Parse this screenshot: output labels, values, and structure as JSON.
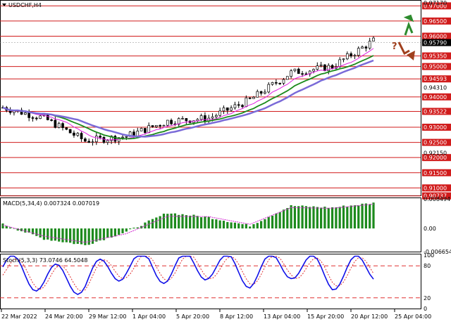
{
  "header": {
    "symbol_label": "USDCHF,H4",
    "dropdown_icon": "triangle-down-icon"
  },
  "colors": {
    "resistance_line": "#d11c1c",
    "candle": "#000000",
    "ma_fast": "#e020e0",
    "ma_mid": "#1a8a1a",
    "ma_slow": "#7a6ad8",
    "macd_hist": "#1c8a1c",
    "macd_signal": "#d02ad0",
    "stoch_main": "#1010e8",
    "stoch_signal": "#e03030",
    "up_arrow": "#2e8b2e",
    "down_arrow": "#a0401e",
    "question_mark": "#a0401e",
    "current_price_bg": "#000000"
  },
  "icons": {
    "up_arrow": "curved-up-arrow-icon",
    "down_arrow": "curved-down-arrow-icon",
    "question": "question-mark-icon"
  },
  "price_axis": {
    "top_label": "0.97170",
    "current_price": "0.95790",
    "resistance_levels": [
      "0.97000",
      "0.96500",
      "0.96000",
      "0.95350",
      "0.95000",
      "0.94593",
      "0.94000",
      "0.93522",
      "0.93000",
      "0.92500",
      "0.92000",
      "0.91500",
      "0.91000",
      "0.90737"
    ],
    "intermediate_labels": [
      "0.94310",
      "0.92150"
    ]
  },
  "macd": {
    "label": "MACD(5,34,4) 0.007324 0.007019",
    "axis_labels": [
      "0.008494",
      "0.00",
      "-0.006654"
    ]
  },
  "stochastic": {
    "label": "Stoch(5,3,3) 73.0746 64.5048",
    "axis_labels": [
      "100",
      "80",
      "20",
      "0"
    ]
  },
  "time_axis": {
    "labels": [
      "22 Mar 2022",
      "24 Mar 20:00",
      "29 Mar 12:00",
      "1 Apr 04:00",
      "5 Apr 20:00",
      "8 Apr 12:00",
      "13 Apr 04:00",
      "15 Apr 20:00",
      "20 Apr 12:00",
      "25 Apr 04:00"
    ]
  },
  "chart_data": [
    {
      "type": "line",
      "title": "USDCHF,H4",
      "description_series": "candlestick close (approx.)",
      "x": [
        "22 Mar 2022",
        "24 Mar 20:00",
        "29 Mar 12:00",
        "1 Apr 04:00",
        "5 Apr 20:00",
        "8 Apr 12:00",
        "13 Apr 04:00",
        "15 Apr 20:00",
        "20 Apr 12:00",
        "25 Apr 04:00"
      ],
      "ylim": [
        0.9073,
        0.9717
      ],
      "series": [
        {
          "values": [
            0.9365,
            0.933,
            0.9255,
            0.927,
            0.932,
            0.933,
            0.939,
            0.948,
            0.95,
            0.9585
          ]
        }
      ]
    },
    {
      "type": "bar",
      "title": "MACD(5,34,4) 0.007324 0.007019",
      "ylim": [
        -0.006654,
        0.008494
      ],
      "series": [
        {
          "values": [
            0.0012,
            -0.003,
            -0.0048,
            -0.001,
            0.0045,
            0.0032,
            0.0008,
            0.0065,
            0.006,
            0.0073
          ]
        },
        {
          "values": [
            0.001,
            -0.0022,
            -0.004,
            -0.0015,
            0.0035,
            0.0034,
            0.0012,
            0.006,
            0.0058,
            0.007
          ]
        }
      ]
    },
    {
      "type": "line",
      "title": "Stoch(5,3,3) 73.0746 64.5048",
      "ylim": [
        0,
        100
      ],
      "series": [
        {
          "values": [
            70,
            15,
            10,
            85,
            60,
            80,
            40,
            85,
            30,
            73
          ]
        },
        {
          "values": [
            65,
            20,
            15,
            78,
            65,
            75,
            45,
            80,
            35,
            64.5
          ]
        }
      ]
    }
  ]
}
